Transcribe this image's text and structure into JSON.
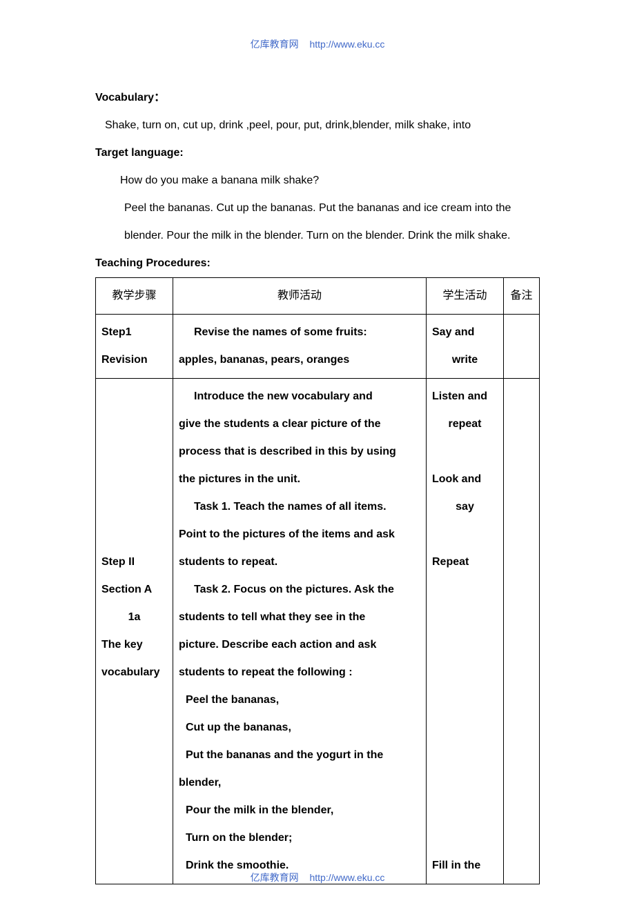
{
  "header": {
    "site_name": "亿库教育网",
    "url": "http://www.eku.cc"
  },
  "footer": {
    "site_name": "亿库教育网",
    "url": "http://www.eku.cc"
  },
  "vocab_heading": "Vocabulary：",
  "vocab_text": "Shake, turn on, cut up, drink ,peel, pour, put, drink,blender, milk shake, into",
  "target_heading": "Target language:",
  "target_q": "How do you make a  banana milk shake?",
  "target_a": "Peel the bananas. Cut up the bananas. Put the bananas and ice cream into the blender. Pour the milk in the blender. Turn on the blender. Drink the milk shake.",
  "procedures_heading": "Teaching Procedures:",
  "table": {
    "columns": {
      "c1_width": 112,
      "c2_width": 344,
      "c3_width": 112,
      "c4_width": 52
    },
    "border_color": "#000000",
    "text_color": "#000000",
    "font_size": 16,
    "line_height": 2.5,
    "header_row": {
      "c1": "教学步骤",
      "c2": "教师活动",
      "c3": "学生活动",
      "c4": "备注"
    },
    "row1": {
      "c1": {
        "l1": "Step1",
        "l2": "Revision"
      },
      "c2": {
        "l1": "Revise the names of some fruits:",
        "l2": "apples, bananas, pears, oranges"
      },
      "c3": {
        "l1": "Say and",
        "l2": "write"
      },
      "c4": ""
    },
    "row2": {
      "c1": {
        "l1": "",
        "l2": "",
        "l3": "",
        "l4": "",
        "l5": "",
        "l6": "",
        "l7": "Step II",
        "l8": "Section A",
        "l9": "1a",
        "l10": "The key",
        "l11": "vocabulary"
      },
      "c2": {
        "l1": "Introduce the new vocabulary and",
        "l2": "give the students a clear picture of the",
        "l3": "process that is described in this by using",
        "l4": "the pictures in the unit.",
        "l5": "Task 1. Teach the names of all items.",
        "l6": "Point to the pictures of the items and ask",
        "l7": "students to repeat.",
        "l8": "Task 2. Focus on the pictures. Ask the",
        "l9": "students to tell what they see in the",
        "l10": "picture. Describe each action and ask",
        "l11": "students to repeat the following :",
        "l12": "Peel the bananas,",
        "l13": "Cut up the bananas,",
        "l14": "Put the bananas and the yogurt in the",
        "l15": "blender,",
        "l16": "Pour the milk in the blender,",
        "l17": "Turn on the blender;",
        "l18": "Drink the smoothie."
      },
      "c3": {
        "l1": "Listen and",
        "l2": "repeat",
        "l3": "",
        "l4": "Look and",
        "l5": "say",
        "l6": "",
        "l7": "Repeat",
        "l8": "",
        "l9": "",
        "l10": "",
        "l11": "",
        "l12": "",
        "l13": "",
        "l14": "",
        "l15": "",
        "l16": "",
        "l17": "",
        "l18": "Fill in the"
      },
      "c4": ""
    }
  }
}
